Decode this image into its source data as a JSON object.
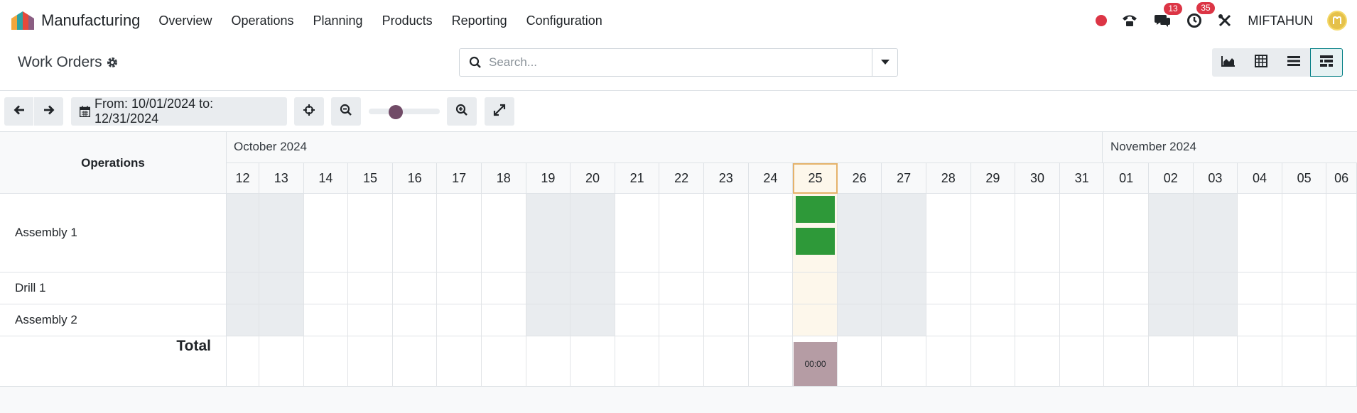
{
  "navbar": {
    "app_name": "Manufacturing",
    "menu": [
      "Overview",
      "Operations",
      "Planning",
      "Products",
      "Reporting",
      "Configuration"
    ],
    "messages_badge": "13",
    "activities_badge": "35",
    "username": "MIFTAHUN"
  },
  "control_panel": {
    "breadcrumb": "Work Orders",
    "search_placeholder": "Search...",
    "views": [
      "graph",
      "pivot",
      "list",
      "gantt"
    ],
    "active_view": "gantt"
  },
  "gantt_toolbar": {
    "range_label": "From: 10/01/2024 to: 12/31/2024",
    "zoom_level": 0.35
  },
  "gantt": {
    "rows_title": "Operations",
    "months": [
      "October 2024",
      "November 2024"
    ],
    "days": [
      "12",
      "13",
      "14",
      "15",
      "16",
      "17",
      "18",
      "19",
      "20",
      "21",
      "22",
      "23",
      "24",
      "25",
      "26",
      "27",
      "28",
      "29",
      "30",
      "31",
      "01",
      "02",
      "03",
      "04",
      "05",
      "06"
    ],
    "today": "25",
    "weekend_days": [
      "12",
      "13",
      "19",
      "20",
      "26",
      "27",
      "02",
      "03"
    ],
    "rows": [
      {
        "label": "Assembly 1",
        "pills_on": "25",
        "pill_count": 2
      },
      {
        "label": "Drill 1"
      },
      {
        "label": "Assembly 2"
      }
    ],
    "total_label": "Total",
    "total_value": "00:00",
    "colors": {
      "pill": "#2e9939",
      "total_bar": "#b59ca4",
      "weekend": "#e9ecef",
      "today": "#fdf7eb",
      "accent": "#714b67",
      "badge": "#dc3545"
    }
  }
}
